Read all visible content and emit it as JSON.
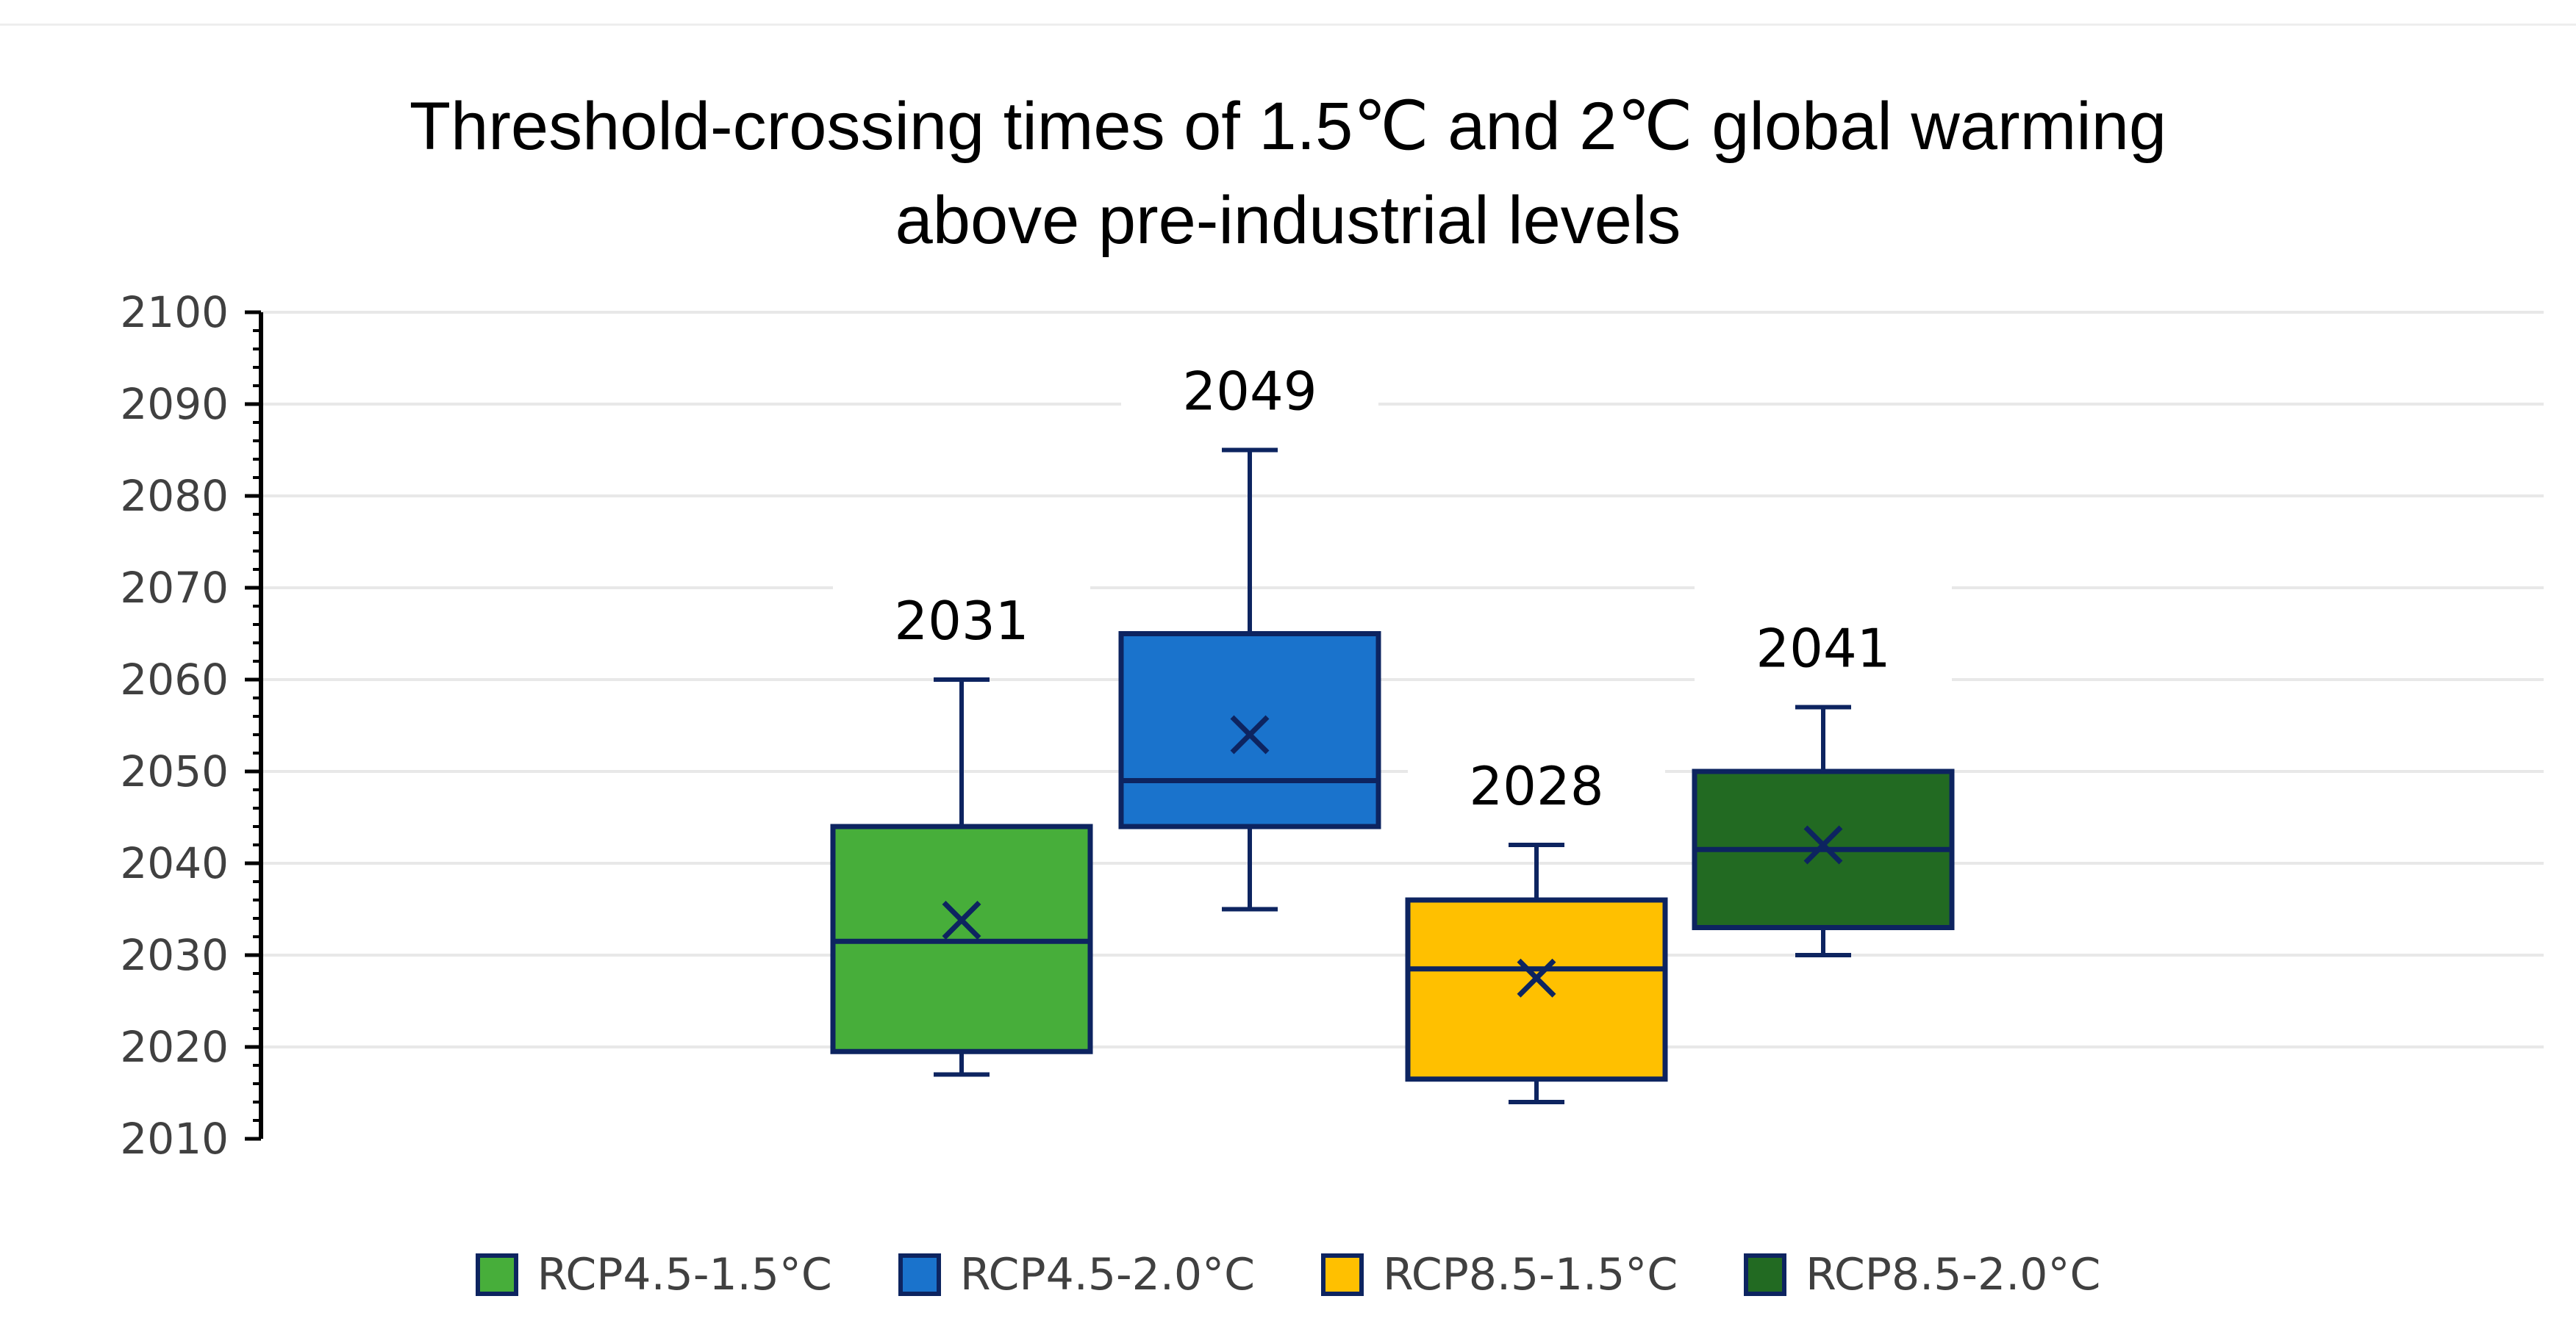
{
  "chart_data": {
    "type": "box",
    "title": [
      "Threshold-crossing times of 1.5℃ and 2℃ global warming",
      "above pre-industrial levels"
    ],
    "ylim": [
      2010,
      2100
    ],
    "yticks": [
      2010,
      2020,
      2030,
      2040,
      2050,
      2060,
      2070,
      2080,
      2090,
      2100
    ],
    "legend_position": "bottom",
    "series": [
      {
        "name": "RCP4.5-1.5°C",
        "color": "#47ae3a",
        "min": 2017,
        "q1": 2019.5,
        "median": 2031.5,
        "q3": 2044,
        "max": 2060,
        "mean": 2033.8,
        "label": "2031"
      },
      {
        "name": "RCP4.5-2.0°C",
        "color": "#1a73cc",
        "min": 2035,
        "q1": 2044,
        "median": 2049,
        "q3": 2065,
        "max": 2085,
        "mean": 2054,
        "label": "2049"
      },
      {
        "name": "RCP8.5-1.5°C",
        "color": "#ffc000",
        "min": 2014,
        "q1": 2016.5,
        "median": 2028.5,
        "q3": 2036,
        "max": 2042,
        "mean": 2027.5,
        "label": "2028"
      },
      {
        "name": "RCP8.5-2.0°C",
        "color": "#226a22",
        "min": 2030,
        "q1": 2033,
        "median": 2041.5,
        "q3": 2050,
        "max": 2057,
        "mean": 2042,
        "label": "2041"
      }
    ]
  }
}
